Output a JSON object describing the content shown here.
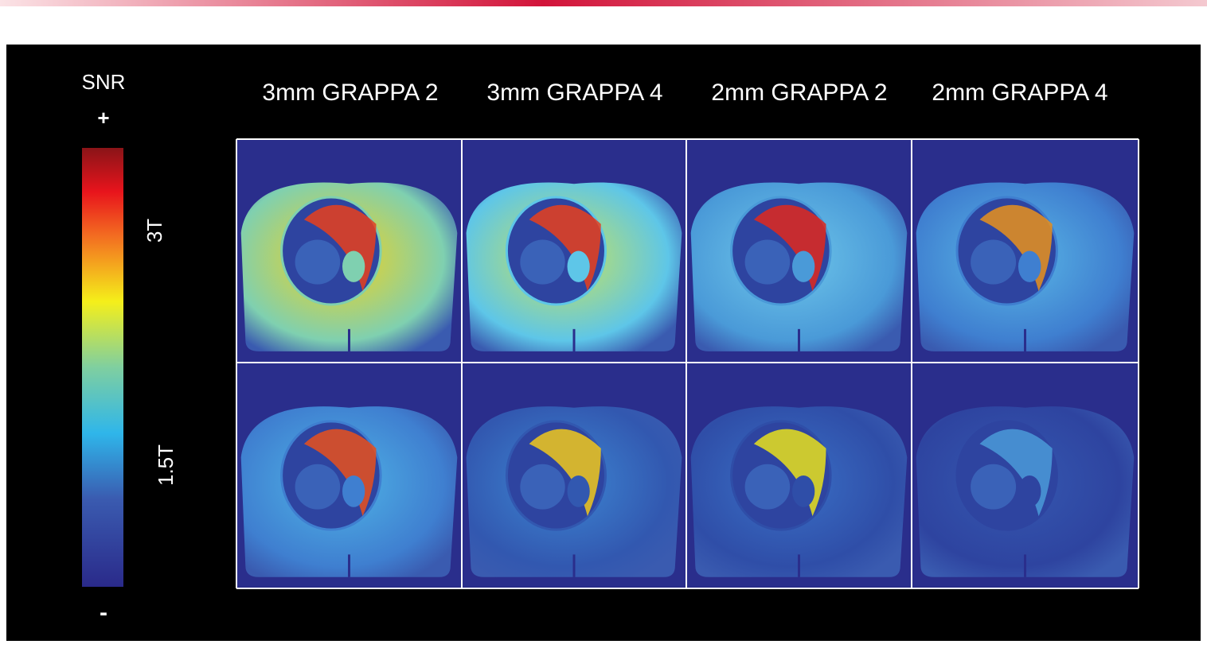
{
  "colorbar": {
    "title": "SNR",
    "plus": "+",
    "minus": "-",
    "labels": [
      "3T",
      "1.5T"
    ]
  },
  "columns": [
    "3mm GRAPPA 2",
    "3mm GRAPPA 4",
    "2mm GRAPPA 2",
    "2mm GRAPPA 4"
  ]
}
